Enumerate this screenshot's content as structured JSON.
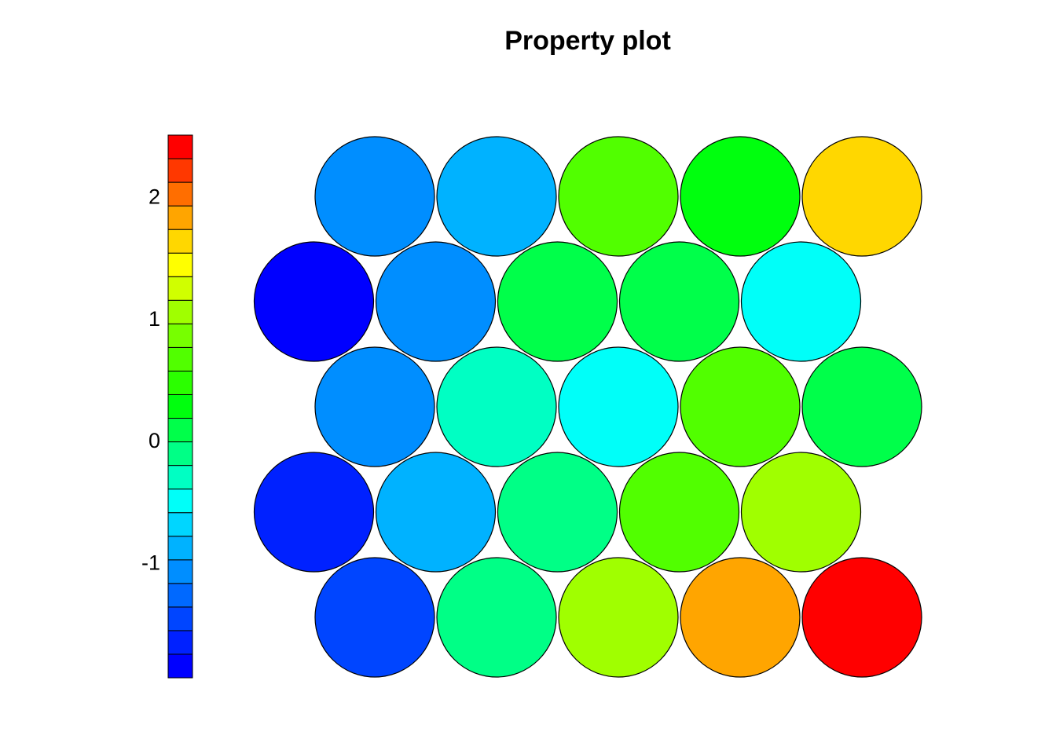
{
  "chart_data": {
    "type": "heatmap",
    "subtype": "self-organizing-map property plot (hexagonal grid of circles)",
    "title": "Property plot",
    "grid": {
      "rows": 5,
      "cols": 5,
      "layout": "hexagonal"
    },
    "rows_bottom_to_top": [
      [
        -1.55,
        -0.15,
        1.05,
        1.75,
        2.45
      ],
      [
        -1.65,
        -0.85,
        -0.05,
        0.75,
        1.05
      ],
      [
        -1.05,
        -0.35,
        -0.55,
        0.65,
        0.05
      ],
      [
        -1.95,
        -1.05,
        0.05,
        0.05,
        -0.55
      ],
      [
        -1.05,
        -0.85,
        0.65,
        0.25,
        1.55
      ]
    ],
    "colorbar": {
      "range": [
        -1.95,
        2.5
      ],
      "ticks": [
        -1,
        0,
        1,
        2
      ],
      "tick_labels": [
        "-1",
        "0",
        "1",
        "2"
      ],
      "colors_bottom_to_top": [
        "#0000FF",
        "#0021FF",
        "#0045FF",
        "#0069FF",
        "#008EFF",
        "#00B2FF",
        "#00D6FF",
        "#00FFF9",
        "#00FFC3",
        "#00FF86",
        "#00FF4A",
        "#00FF0E",
        "#2BFF00",
        "#51FF00",
        "#77FF00",
        "#A0FF00",
        "#D0FF00",
        "#FFFF00",
        "#FFD700",
        "#FFA500",
        "#FF6E00",
        "#FF3800",
        "#FF0000"
      ]
    }
  }
}
